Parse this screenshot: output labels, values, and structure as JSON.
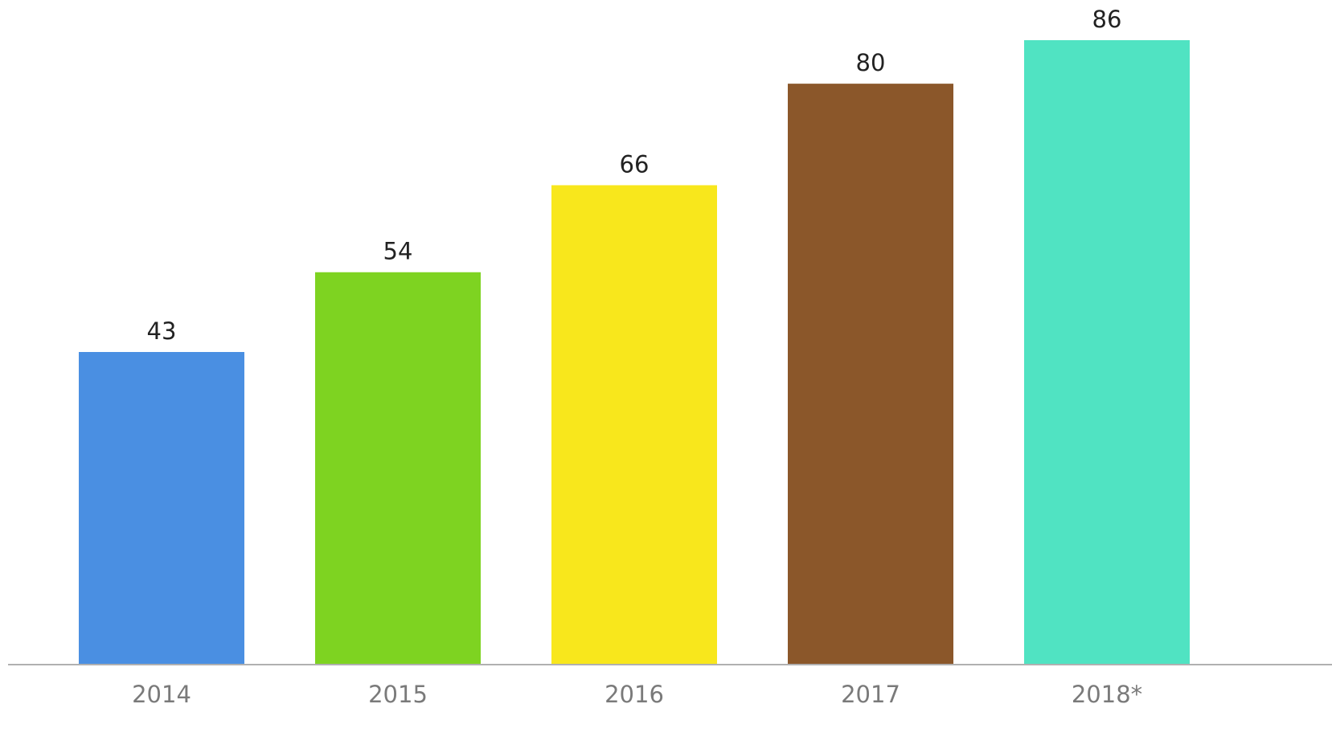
{
  "chart_data": {
    "type": "bar",
    "title": "",
    "xlabel": "",
    "ylabel": "",
    "categories": [
      "2014",
      "2015",
      "2016",
      "2017",
      "2018*"
    ],
    "values": [
      43,
      54,
      66,
      80,
      86
    ],
    "data_labels": [
      "43",
      "54",
      "66",
      "80",
      "86"
    ],
    "colors": [
      "#4a8fe2",
      "#7ed321",
      "#f8e71c",
      "#8b572a",
      "#50e3c2"
    ],
    "ylim": [
      0,
      86
    ],
    "grid": false,
    "legend": "none",
    "axis_line_color": "#b0b0b0"
  }
}
